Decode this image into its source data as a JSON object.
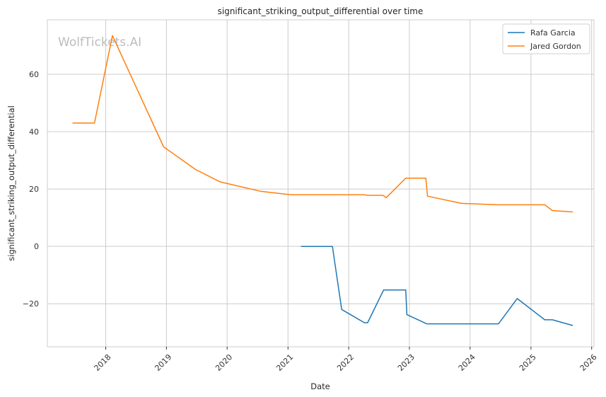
{
  "chart_data": {
    "type": "line",
    "title": "significant_striking_output_differential over time",
    "xlabel": "Date",
    "ylabel": "significant_striking_output_differential",
    "watermark": "WolfTickets.AI",
    "x_axis": "date",
    "xlim": [
      "2017-01-15",
      "2026-01-15"
    ],
    "ylim": [
      -35,
      79
    ],
    "x_ticks": [
      "2018",
      "2019",
      "2020",
      "2021",
      "2022",
      "2023",
      "2024",
      "2025",
      "2026"
    ],
    "y_ticks": [
      -20,
      0,
      20,
      40,
      60
    ],
    "grid": true,
    "legend_position": "top-right",
    "series": [
      {
        "name": "Rafa Garcia",
        "color": "#1f77b4",
        "points": [
          [
            "2021-03-20",
            0
          ],
          [
            "2021-09-25",
            0
          ],
          [
            "2021-11-20",
            -22
          ],
          [
            "2022-04-05",
            -26.6
          ],
          [
            "2022-04-25",
            -26.6
          ],
          [
            "2022-07-30",
            -15.2
          ],
          [
            "2022-12-10",
            -15.2
          ],
          [
            "2022-12-17",
            -23.8
          ],
          [
            "2023-04-15",
            -27.0
          ],
          [
            "2024-06-20",
            -27.0
          ],
          [
            "2024-10-10",
            -18.2
          ],
          [
            "2025-03-25",
            -25.6
          ],
          [
            "2025-05-10",
            -25.6
          ],
          [
            "2025-09-10",
            -27.6
          ]
        ]
      },
      {
        "name": "Jared Gordon",
        "color": "#ff7f0e",
        "points": [
          [
            "2017-06-15",
            43
          ],
          [
            "2017-10-25",
            43
          ],
          [
            "2018-02-10",
            73.5
          ],
          [
            "2018-12-15",
            34.7
          ],
          [
            "2019-06-25",
            26.8
          ],
          [
            "2019-11-20",
            22.5
          ],
          [
            "2020-07-20",
            19.2
          ],
          [
            "2021-01-20",
            18.0
          ],
          [
            "2022-04-05",
            18.0
          ],
          [
            "2022-04-25",
            17.8
          ],
          [
            "2022-07-25",
            17.8
          ],
          [
            "2022-08-15",
            17.0
          ],
          [
            "2022-12-10",
            23.8
          ],
          [
            "2023-04-10",
            23.8
          ],
          [
            "2023-04-20",
            17.5
          ],
          [
            "2023-11-10",
            15.0
          ],
          [
            "2024-06-15",
            14.5
          ],
          [
            "2025-03-25",
            14.5
          ],
          [
            "2025-05-10",
            12.5
          ],
          [
            "2025-09-10",
            12.0
          ]
        ]
      }
    ]
  }
}
